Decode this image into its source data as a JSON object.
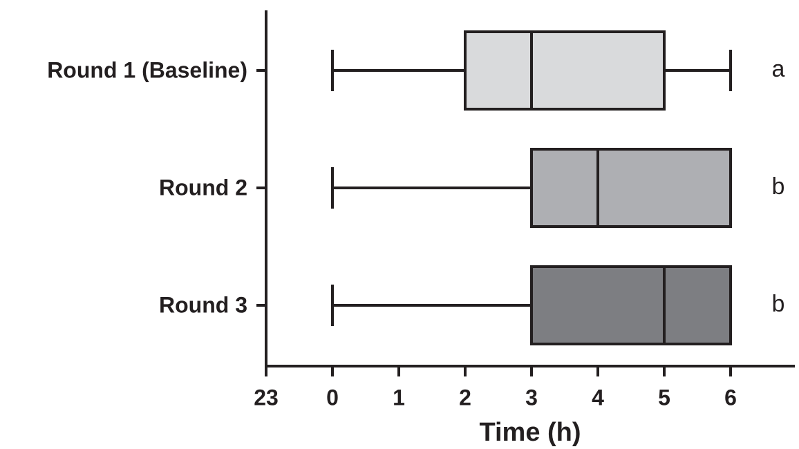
{
  "chart_data": {
    "type": "box",
    "orientation": "horizontal",
    "categories": [
      "Round 1 (Baseline)",
      "Round 2",
      "Round 3"
    ],
    "min": [
      0,
      0,
      0
    ],
    "q1": [
      2,
      3,
      3
    ],
    "median": [
      3,
      4,
      5
    ],
    "q3": [
      5,
      6,
      6
    ],
    "max": [
      6,
      6,
      6
    ],
    "colors": [
      "#d9dadc",
      "#aeafb3",
      "#7d7e82"
    ],
    "annotations": [
      "a",
      "b",
      "b"
    ],
    "x_label": "Time (h)",
    "xlim": [
      -1,
      7
    ],
    "xticks": [
      {
        "value": -1,
        "label": "23"
      },
      0,
      1,
      2,
      3,
      4,
      5,
      6
    ]
  }
}
